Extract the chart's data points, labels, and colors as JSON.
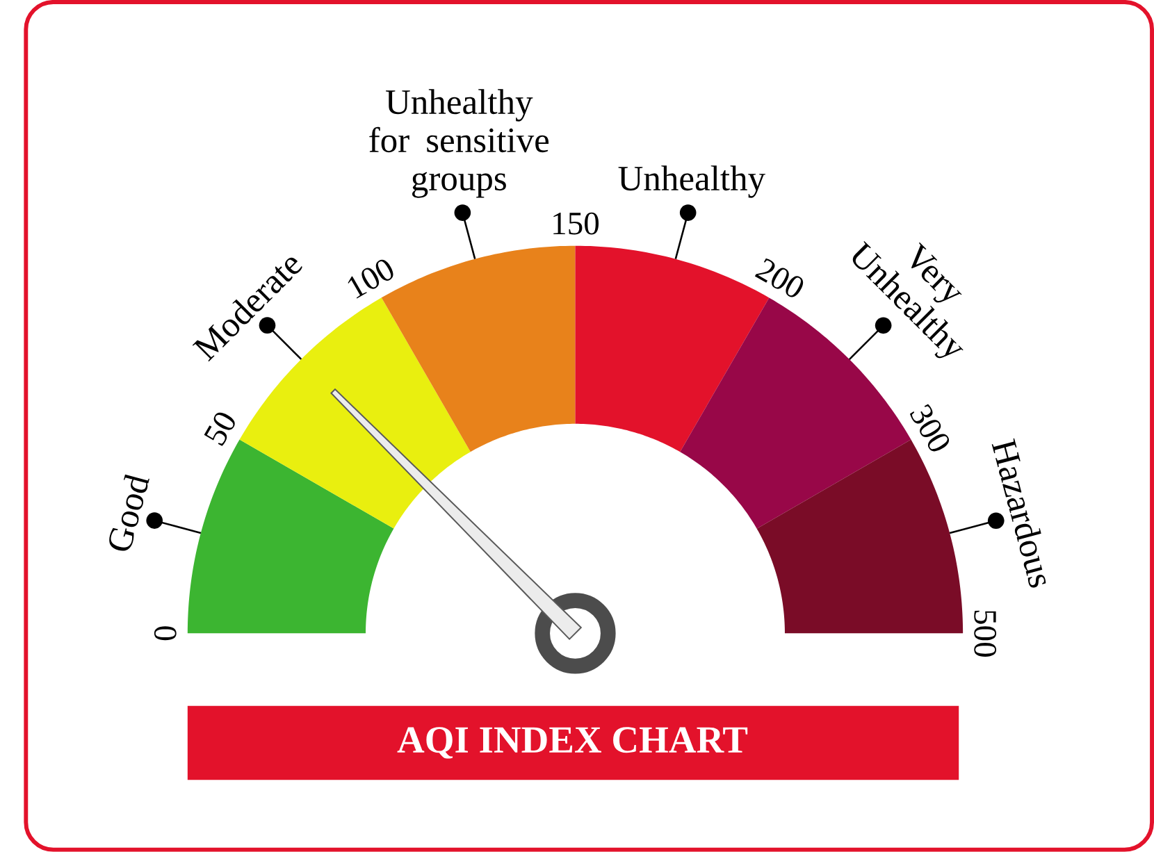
{
  "chart_data": {
    "type": "donut",
    "title": "AQI INDEX CHART",
    "categories": [
      "Good",
      "Moderate",
      "Unhealthy for sensitive groups",
      "Unhealthy",
      "Very Unhealthy",
      "Hazardous"
    ],
    "values": [
      16.67,
      16.67,
      16.66,
      16.67,
      16.67,
      16.66
    ],
    "colors": [
      "#3cb531",
      "#e9ef0f",
      "#e8821b",
      "#e3122b",
      "#980748",
      "#7a0c27"
    ],
    "needle": "Moderate",
    "annotations": [
      "0",
      "50",
      "100",
      "150",
      "200",
      "300",
      "500"
    ]
  }
}
